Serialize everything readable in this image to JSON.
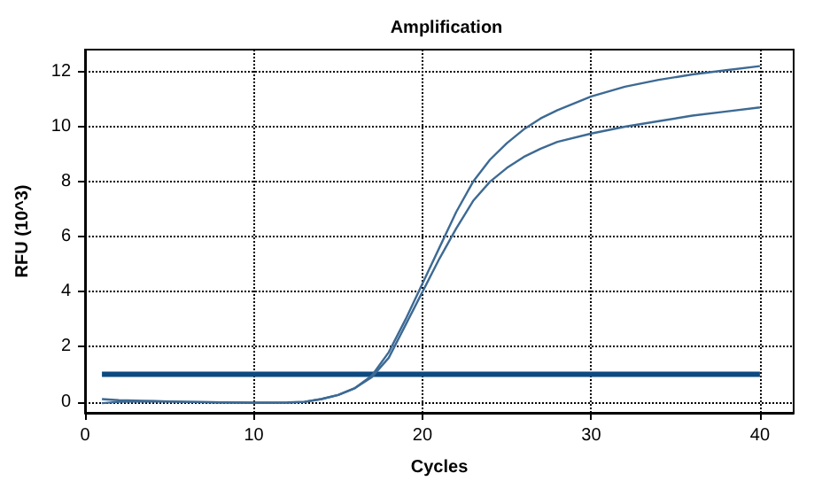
{
  "chart_data": {
    "type": "line",
    "title": "Amplification",
    "xlabel": "Cycles",
    "ylabel": "RFU (10^3)",
    "xlim": [
      0,
      42
    ],
    "xticks": [
      0,
      10,
      20,
      30,
      40
    ],
    "ylim": [
      -0.4,
      12.8
    ],
    "yticks": [
      0,
      2,
      4,
      6,
      8,
      10,
      12
    ],
    "grid": true,
    "marker": "none",
    "line_style": "solid",
    "ref_lines": [
      {
        "axis": "y",
        "value": 1,
        "color": "#0d4a80"
      }
    ],
    "series": [
      {
        "color": "#3d6a94",
        "x": [
          1,
          2,
          4,
          6,
          8,
          10,
          12,
          13,
          14,
          15,
          16,
          17,
          18,
          19,
          20,
          21,
          22,
          23,
          24,
          25,
          26,
          27,
          28,
          29,
          30,
          32,
          34,
          36,
          38,
          40
        ],
        "values": [
          0.1,
          0.06,
          0.03,
          0,
          -0.02,
          -0.03,
          -0.02,
          0,
          0.1,
          0.25,
          0.5,
          0.95,
          1.8,
          3.0,
          4.3,
          5.6,
          6.9,
          8.0,
          8.8,
          9.4,
          9.9,
          10.3,
          10.6,
          10.85,
          11.1,
          11.45,
          11.7,
          11.9,
          12.05,
          12.2
        ]
      },
      {
        "color": "#3d6a94",
        "x": [
          1,
          2,
          4,
          6,
          8,
          10,
          12,
          13,
          14,
          15,
          16,
          17,
          18,
          19,
          20,
          21,
          22,
          23,
          24,
          25,
          26,
          27,
          28,
          30,
          32,
          34,
          36,
          38,
          40
        ],
        "values": [
          -0.05,
          0,
          0.02,
          0,
          -0.02,
          -0.04,
          -0.03,
          0,
          0.1,
          0.25,
          0.5,
          0.9,
          1.6,
          2.8,
          4.0,
          5.2,
          6.3,
          7.3,
          8.0,
          8.5,
          8.9,
          9.2,
          9.45,
          9.75,
          10.0,
          10.2,
          10.4,
          10.55,
          10.7
        ]
      }
    ]
  }
}
